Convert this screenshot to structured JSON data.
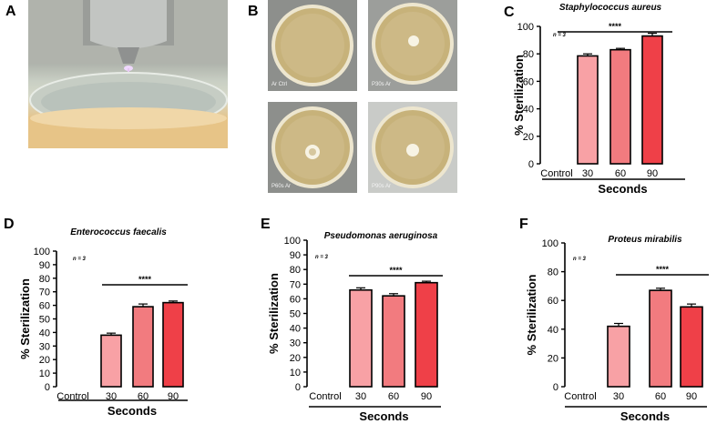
{
  "panels": {
    "A": {
      "letter": "A"
    },
    "B": {
      "letter": "B",
      "plate_labels": [
        "Ar Ctrl",
        "P30s Ar",
        "P60s  Ar",
        "P90s Ar"
      ]
    }
  },
  "colors": {
    "control": "#ffffff",
    "s30": "#f8a1a5",
    "s60": "#f27b7f",
    "s90": "#ef4048"
  },
  "chart_data": [
    {
      "letter": "C",
      "type": "bar",
      "title": "Staphylococcus aureus",
      "n_label": "n = 3",
      "categories": [
        "Control",
        "30",
        "60",
        "90"
      ],
      "values": [
        0,
        78.5,
        83,
        93
      ],
      "errors": [
        0,
        1.5,
        1.0,
        2.0
      ],
      "ylabel": "% Sterilization",
      "xlabel": "Seconds",
      "ylim": [
        0,
        100
      ],
      "yticks": [
        0,
        20,
        40,
        60,
        80,
        100
      ],
      "significance": "****"
    },
    {
      "letter": "D",
      "type": "bar",
      "title": "Enterococcus faecalis",
      "n_label": "n = 3",
      "categories": [
        "Control",
        "30",
        "60",
        "90"
      ],
      "values": [
        0,
        38,
        59,
        62
      ],
      "errors": [
        0,
        1.5,
        2.0,
        1.2
      ],
      "ylabel": "% Sterilization",
      "xlabel": "Seconds",
      "ylim": [
        0,
        100
      ],
      "yticks": [
        0,
        10,
        20,
        30,
        40,
        50,
        60,
        70,
        80,
        90,
        100
      ],
      "significance": "****"
    },
    {
      "letter": "E",
      "type": "bar",
      "title": "Pseudomonas aeruginosa",
      "n_label": "n = 3",
      "categories": [
        "Control",
        "30",
        "60",
        "90"
      ],
      "values": [
        0,
        66,
        62,
        71
      ],
      "errors": [
        0,
        1.5,
        1.5,
        1.0
      ],
      "ylabel": "% Sterilization",
      "xlabel": "Seconds",
      "ylim": [
        0,
        100
      ],
      "yticks": [
        0,
        10,
        20,
        30,
        40,
        50,
        60,
        70,
        80,
        90,
        100
      ],
      "significance": "****"
    },
    {
      "letter": "F",
      "type": "bar",
      "title": "Proteus mirabilis",
      "n_label": "n = 3",
      "categories": [
        "Control",
        "30",
        "60",
        "90"
      ],
      "values": [
        0,
        42,
        67,
        55.5
      ],
      "errors": [
        0,
        2.0,
        1.5,
        2.0
      ],
      "ylabel": "% Sterilization",
      "xlabel": "Seconds",
      "ylim": [
        0,
        100
      ],
      "yticks": [
        0,
        20,
        40,
        60,
        80,
        100
      ],
      "significance": "****"
    }
  ]
}
